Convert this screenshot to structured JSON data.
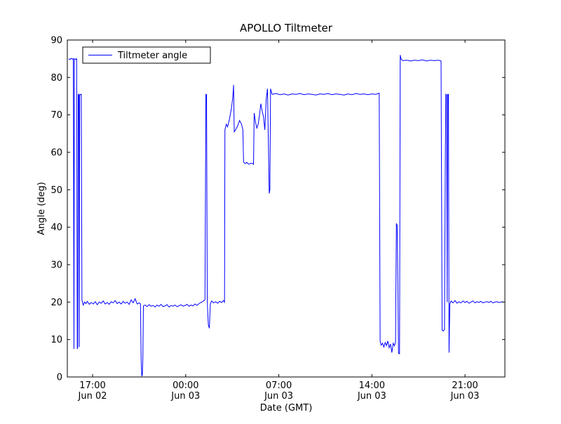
{
  "title": "APOLLO Tiltmeter",
  "colors": {
    "line": "#0000ff",
    "axis": "#000000",
    "background": "#ffffff"
  },
  "legend": {
    "entries": [
      {
        "label": "Tiltmeter angle",
        "color": "#0000ff"
      }
    ],
    "position": "upper left"
  },
  "chart_data": {
    "type": "line",
    "title": "APOLLO Tiltmeter",
    "xlabel": "Date (GMT)",
    "ylabel": "Angle (deg)",
    "xlim": [
      15.1,
      48.0
    ],
    "ylim": [
      0,
      90
    ],
    "grid": false,
    "yticks": [
      0,
      10,
      20,
      30,
      40,
      50,
      60,
      70,
      80,
      90
    ],
    "xticks": [
      {
        "t": 17,
        "time": "17:00",
        "date": "Jun 02"
      },
      {
        "t": 24,
        "time": "00:00",
        "date": "Jun 03"
      },
      {
        "t": 31,
        "time": "07:00",
        "date": "Jun 03"
      },
      {
        "t": 38,
        "time": "14:00",
        "date": "Jun 03"
      },
      {
        "t": 45,
        "time": "21:00",
        "date": "Jun 03"
      }
    ],
    "x_unit": "hours since Jun 02 00:00 GMT",
    "series": [
      {
        "name": "Tiltmeter angle",
        "color": "#0000ff",
        "points": [
          [
            15.2,
            85.0
          ],
          [
            15.3,
            84.8
          ],
          [
            15.4,
            85.1
          ],
          [
            15.5,
            84.9
          ],
          [
            15.55,
            85.0
          ],
          [
            15.6,
            7.5
          ],
          [
            15.63,
            85.0
          ],
          [
            15.75,
            84.8
          ],
          [
            15.8,
            85.0
          ],
          [
            15.85,
            7.5
          ],
          [
            15.88,
            8.0
          ],
          [
            15.92,
            75.5
          ],
          [
            15.97,
            75.3
          ],
          [
            16.0,
            8.0
          ],
          [
            16.03,
            75.5
          ],
          [
            16.1,
            75.4
          ],
          [
            16.15,
            75.5
          ],
          [
            16.2,
            20.5
          ],
          [
            16.3,
            19.2
          ],
          [
            16.4,
            20.0
          ],
          [
            16.5,
            19.6
          ],
          [
            16.6,
            20.2
          ],
          [
            16.75,
            19.4
          ],
          [
            16.9,
            19.9
          ],
          [
            17.05,
            19.5
          ],
          [
            17.2,
            20.1
          ],
          [
            17.35,
            19.3
          ],
          [
            17.5,
            20.0
          ],
          [
            17.65,
            19.7
          ],
          [
            17.8,
            20.3
          ],
          [
            17.95,
            19.5
          ],
          [
            18.1,
            19.9
          ],
          [
            18.25,
            19.4
          ],
          [
            18.4,
            20.1
          ],
          [
            18.55,
            19.8
          ],
          [
            18.7,
            20.4
          ],
          [
            18.85,
            19.6
          ],
          [
            19.0,
            20.0
          ],
          [
            19.15,
            19.5
          ],
          [
            19.3,
            20.2
          ],
          [
            19.45,
            19.7
          ],
          [
            19.6,
            20.0
          ],
          [
            19.75,
            19.4
          ],
          [
            19.9,
            20.6
          ],
          [
            20.05,
            19.8
          ],
          [
            20.2,
            20.9
          ],
          [
            20.35,
            19.5
          ],
          [
            20.5,
            19.8
          ],
          [
            20.6,
            19.5
          ],
          [
            20.65,
            4.5
          ],
          [
            20.7,
            0.3
          ],
          [
            20.74,
            0.5
          ],
          [
            20.78,
            5.0
          ],
          [
            20.82,
            19.0
          ],
          [
            20.95,
            19.2
          ],
          [
            21.1,
            18.8
          ],
          [
            21.25,
            19.3
          ],
          [
            21.4,
            18.9
          ],
          [
            21.55,
            19.1
          ],
          [
            21.7,
            18.7
          ],
          [
            21.85,
            19.2
          ],
          [
            22.0,
            18.9
          ],
          [
            22.15,
            19.4
          ],
          [
            22.3,
            18.8
          ],
          [
            22.45,
            19.0
          ],
          [
            22.6,
            19.3
          ],
          [
            22.75,
            18.7
          ],
          [
            22.9,
            19.1
          ],
          [
            23.05,
            18.9
          ],
          [
            23.2,
            19.2
          ],
          [
            23.35,
            18.8
          ],
          [
            23.5,
            19.0
          ],
          [
            23.65,
            19.3
          ],
          [
            23.8,
            18.9
          ],
          [
            23.95,
            19.1
          ],
          [
            24.1,
            19.4
          ],
          [
            24.25,
            18.9
          ],
          [
            24.4,
            19.2
          ],
          [
            24.55,
            19.0
          ],
          [
            24.7,
            19.5
          ],
          [
            24.85,
            19.1
          ],
          [
            25.0,
            19.6
          ],
          [
            25.15,
            19.9
          ],
          [
            25.3,
            20.2
          ],
          [
            25.45,
            20.6
          ],
          [
            25.52,
            75.5
          ],
          [
            25.57,
            75.4
          ],
          [
            25.62,
            20.5
          ],
          [
            25.7,
            14.0
          ],
          [
            25.78,
            13.0
          ],
          [
            25.85,
            19.5
          ],
          [
            25.95,
            20.3
          ],
          [
            26.1,
            19.8
          ],
          [
            26.25,
            20.1
          ],
          [
            26.4,
            19.7
          ],
          [
            26.55,
            20.2
          ],
          [
            26.7,
            19.9
          ],
          [
            26.85,
            20.4
          ],
          [
            26.92,
            20.0
          ],
          [
            26.95,
            66.0
          ],
          [
            27.05,
            67.5
          ],
          [
            27.15,
            66.8
          ],
          [
            27.3,
            69.0
          ],
          [
            27.45,
            72.0
          ],
          [
            27.55,
            75.0
          ],
          [
            27.6,
            78.0
          ],
          [
            27.65,
            65.5
          ],
          [
            27.75,
            66.0
          ],
          [
            27.9,
            67.0
          ],
          [
            28.05,
            68.5
          ],
          [
            28.2,
            67.5
          ],
          [
            28.3,
            66.0
          ],
          [
            28.35,
            57.5
          ],
          [
            28.45,
            57.0
          ],
          [
            28.6,
            57.3
          ],
          [
            28.75,
            56.8
          ],
          [
            28.9,
            57.1
          ],
          [
            29.05,
            57.0
          ],
          [
            29.1,
            56.8
          ],
          [
            29.15,
            70.5
          ],
          [
            29.25,
            68.0
          ],
          [
            29.35,
            66.5
          ],
          [
            29.45,
            67.5
          ],
          [
            29.55,
            70.0
          ],
          [
            29.65,
            73.0
          ],
          [
            29.75,
            71.0
          ],
          [
            29.85,
            69.5
          ],
          [
            29.95,
            66.0
          ],
          [
            30.05,
            74.0
          ],
          [
            30.15,
            77.0
          ],
          [
            30.22,
            62.0
          ],
          [
            30.28,
            49.0
          ],
          [
            30.33,
            50.0
          ],
          [
            30.38,
            77.0
          ],
          [
            30.45,
            76.0
          ],
          [
            30.5,
            75.5
          ],
          [
            30.8,
            75.7
          ],
          [
            31.1,
            75.4
          ],
          [
            31.4,
            75.6
          ],
          [
            31.7,
            75.3
          ],
          [
            32.0,
            75.6
          ],
          [
            32.3,
            75.5
          ],
          [
            32.6,
            75.7
          ],
          [
            32.9,
            75.4
          ],
          [
            33.2,
            75.6
          ],
          [
            33.5,
            75.5
          ],
          [
            33.8,
            75.3
          ],
          [
            34.1,
            75.6
          ],
          [
            34.4,
            75.5
          ],
          [
            34.7,
            75.7
          ],
          [
            35.0,
            75.4
          ],
          [
            35.3,
            75.6
          ],
          [
            35.6,
            75.5
          ],
          [
            35.9,
            75.3
          ],
          [
            36.2,
            75.6
          ],
          [
            36.5,
            75.4
          ],
          [
            36.8,
            75.7
          ],
          [
            37.1,
            75.5
          ],
          [
            37.4,
            75.6
          ],
          [
            37.7,
            75.4
          ],
          [
            38.0,
            75.6
          ],
          [
            38.3,
            75.5
          ],
          [
            38.55,
            75.8
          ],
          [
            38.62,
            9.5
          ],
          [
            38.7,
            8.5
          ],
          [
            38.8,
            9.0
          ],
          [
            38.9,
            8.0
          ],
          [
            39.0,
            9.2
          ],
          [
            39.1,
            8.4
          ],
          [
            39.2,
            9.6
          ],
          [
            39.3,
            7.8
          ],
          [
            39.4,
            8.8
          ],
          [
            39.5,
            6.5
          ],
          [
            39.6,
            9.0
          ],
          [
            39.7,
            8.3
          ],
          [
            39.78,
            9.5
          ],
          [
            39.84,
            41.0
          ],
          [
            39.9,
            40.5
          ],
          [
            39.95,
            25.5
          ],
          [
            40.0,
            6.3
          ],
          [
            40.08,
            6.2
          ],
          [
            40.13,
            86.0
          ],
          [
            40.2,
            84.8
          ],
          [
            40.35,
            84.5
          ],
          [
            40.6,
            84.6
          ],
          [
            40.9,
            84.4
          ],
          [
            41.2,
            84.6
          ],
          [
            41.5,
            84.5
          ],
          [
            41.8,
            84.7
          ],
          [
            42.1,
            84.4
          ],
          [
            42.4,
            84.6
          ],
          [
            42.7,
            84.5
          ],
          [
            43.0,
            84.6
          ],
          [
            43.2,
            84.4
          ],
          [
            43.28,
            12.5
          ],
          [
            43.38,
            12.3
          ],
          [
            43.46,
            12.8
          ],
          [
            43.52,
            57.5
          ],
          [
            43.56,
            75.5
          ],
          [
            43.62,
            75.3
          ],
          [
            43.66,
            20.0
          ],
          [
            43.7,
            75.5
          ],
          [
            43.76,
            75.4
          ],
          [
            43.8,
            6.5
          ],
          [
            43.86,
            19.5
          ],
          [
            43.95,
            20.3
          ],
          [
            44.1,
            19.8
          ],
          [
            44.25,
            20.4
          ],
          [
            44.4,
            19.7
          ],
          [
            44.55,
            20.1
          ],
          [
            44.7,
            19.8
          ],
          [
            44.85,
            20.3
          ],
          [
            45.0,
            19.9
          ],
          [
            45.15,
            20.2
          ],
          [
            45.3,
            19.7
          ],
          [
            45.45,
            20.0
          ],
          [
            45.6,
            20.3
          ],
          [
            45.75,
            19.8
          ],
          [
            45.9,
            20.1
          ],
          [
            46.05,
            19.9
          ],
          [
            46.2,
            20.2
          ],
          [
            46.35,
            19.8
          ],
          [
            46.5,
            20.0
          ],
          [
            46.65,
            20.1
          ],
          [
            46.8,
            19.9
          ],
          [
            46.95,
            20.2
          ],
          [
            47.1,
            19.8
          ],
          [
            47.25,
            20.0
          ],
          [
            47.4,
            20.1
          ],
          [
            47.55,
            19.9
          ],
          [
            47.7,
            20.0
          ],
          [
            47.85,
            20.1
          ]
        ]
      }
    ]
  }
}
